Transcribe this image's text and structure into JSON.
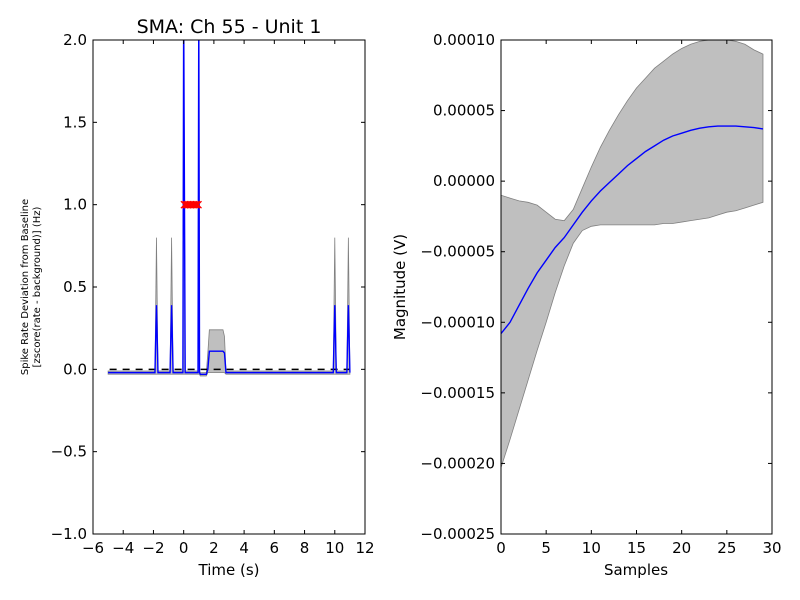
{
  "chart_data": [
    {
      "type": "line",
      "title": "SMA: Ch 55 - Unit 1",
      "xlabel": "Time (s)",
      "ylabel_lines": [
        "Spike Rate Deviation from Baseline",
        "[zscore(rate - background)] (Hz)"
      ],
      "xlim": [
        -6,
        12
      ],
      "ylim": [
        -1.0,
        2.0
      ],
      "xticks": [
        -6,
        -4,
        -2,
        0,
        2,
        4,
        6,
        8,
        10,
        12
      ],
      "xtick_labels": [
        "−6",
        "−4",
        "−2",
        "0",
        "2",
        "4",
        "6",
        "8",
        "10",
        "12"
      ],
      "yticks": [
        -1.0,
        -0.5,
        0.0,
        0.5,
        1.0,
        1.5,
        2.0
      ],
      "ytick_labels": [
        "−1.0",
        "−0.5",
        "0.0",
        "0.5",
        "1.0",
        "1.5",
        "2.0"
      ],
      "colors": {
        "mean": "#0000ff",
        "band": "#bfbfbf",
        "band_edge": "#808080",
        "baseline": "#000000",
        "markers": "#ff0000"
      },
      "baseline": {
        "y": 0.0,
        "x_from": -4.9,
        "x_to": 11.0,
        "style": "dashed"
      },
      "series": [
        {
          "x": [
            -5.0,
            -1.9,
            -1.8,
            -1.7,
            -1.6,
            -0.9,
            -0.8,
            -0.7,
            -0.6,
            -0.05,
            0.0,
            0.1,
            0.95,
            1.0,
            1.05,
            1.1,
            1.5,
            1.6,
            1.7,
            2.6,
            2.7,
            2.8,
            3.0,
            9.9,
            10.0,
            10.1,
            10.2,
            10.8,
            10.9,
            11.0
          ],
          "mean": [
            -0.02,
            -0.02,
            0.39,
            -0.02,
            -0.02,
            -0.02,
            0.39,
            -0.02,
            -0.02,
            -0.02,
            2.2,
            -0.02,
            -0.02,
            2.2,
            -0.02,
            -0.03,
            -0.03,
            0.0,
            0.11,
            0.11,
            0.1,
            -0.02,
            -0.02,
            -0.02,
            0.39,
            -0.02,
            -0.02,
            -0.02,
            0.39,
            -0.02
          ],
          "upper": [
            -0.01,
            -0.01,
            0.8,
            -0.01,
            -0.01,
            -0.01,
            0.8,
            -0.01,
            -0.01,
            -0.01,
            2.2,
            -0.01,
            -0.01,
            2.2,
            -0.01,
            -0.02,
            -0.02,
            0.1,
            0.24,
            0.24,
            0.2,
            -0.01,
            -0.01,
            -0.01,
            0.8,
            -0.01,
            -0.01,
            -0.01,
            0.8,
            -0.01
          ],
          "lower": [
            -0.03,
            -0.03,
            -0.03,
            -0.03,
            -0.03,
            -0.03,
            -0.03,
            -0.03,
            -0.03,
            -0.03,
            -0.03,
            -0.03,
            -0.03,
            -0.03,
            -0.03,
            -0.04,
            -0.04,
            -0.02,
            -0.02,
            -0.02,
            -0.02,
            -0.03,
            -0.03,
            -0.03,
            -0.03,
            -0.03,
            -0.03,
            -0.03,
            -0.03,
            -0.03
          ]
        }
      ],
      "markers": {
        "symbol": "x",
        "y": 1.0,
        "x": [
          0.05,
          0.15,
          0.25,
          0.35,
          0.45,
          0.55,
          0.65,
          0.75,
          0.85,
          0.95
        ]
      }
    },
    {
      "type": "line",
      "xlabel": "Samples",
      "ylabel": "Magnitude (V)",
      "xlim": [
        0,
        30
      ],
      "ylim": [
        -0.00025,
        0.0001
      ],
      "xticks": [
        0,
        5,
        10,
        15,
        20,
        25,
        30
      ],
      "xtick_labels": [
        "0",
        "5",
        "10",
        "15",
        "20",
        "25",
        "30"
      ],
      "yticks": [
        -0.00025,
        -0.0002,
        -0.00015,
        -0.0001,
        -5e-05,
        0.0,
        5e-05,
        0.0001
      ],
      "ytick_labels": [
        "−0.00025",
        "−0.00020",
        "−0.00015",
        "−0.00010",
        "−0.00005",
        "0.00000",
        "0.00005",
        "0.00010"
      ],
      "colors": {
        "mean": "#0000ff",
        "band": "#bfbfbf",
        "band_edge": "#808080"
      },
      "series": [
        {
          "x": [
            0,
            1,
            2,
            3,
            4,
            5,
            6,
            7,
            8,
            9,
            10,
            11,
            12,
            13,
            14,
            15,
            16,
            17,
            18,
            19,
            20,
            21,
            22,
            23,
            24,
            25,
            26,
            27,
            28,
            29
          ],
          "mean": [
            -0.000108,
            -0.0001,
            -8.8e-05,
            -7.6e-05,
            -6.5e-05,
            -5.6e-05,
            -4.7e-05,
            -4e-05,
            -3.1e-05,
            -2.2e-05,
            -1.4e-05,
            -7e-06,
            -1e-06,
            5e-06,
            1.1e-05,
            1.6e-05,
            2.1e-05,
            2.5e-05,
            2.9e-05,
            3.2e-05,
            3.4e-05,
            3.6e-05,
            3.75e-05,
            3.85e-05,
            3.9e-05,
            3.9e-05,
            3.9e-05,
            3.85e-05,
            3.8e-05,
            3.7e-05
          ],
          "upper": [
            -1e-05,
            -1.2e-05,
            -1.4e-05,
            -1.5e-05,
            -1.7e-05,
            -2.2e-05,
            -2.7e-05,
            -2.8e-05,
            -2e-05,
            -5e-06,
            1e-05,
            2.4e-05,
            3.6e-05,
            4.7e-05,
            5.7e-05,
            6.6e-05,
            7.3e-05,
            8e-05,
            8.5e-05,
            9e-05,
            9.4e-05,
            9.7e-05,
            9.9e-05,
            0.0001,
            0.0001,
            0.0001,
            9.9e-05,
            9.7e-05,
            9.3e-05,
            9e-05
          ],
          "lower": [
            -0.000203,
            -0.000183,
            -0.000162,
            -0.000141,
            -0.00012,
            -0.0001,
            -7.9e-05,
            -6e-05,
            -4.4e-05,
            -3.5e-05,
            -3.2e-05,
            -3.1e-05,
            -3.1e-05,
            -3.1e-05,
            -3.1e-05,
            -3.1e-05,
            -3.1e-05,
            -3.1e-05,
            -3e-05,
            -3e-05,
            -2.9e-05,
            -2.8e-05,
            -2.7e-05,
            -2.6e-05,
            -2.4e-05,
            -2.2e-05,
            -2.1e-05,
            -1.9e-05,
            -1.7e-05,
            -1.5e-05
          ]
        }
      ]
    }
  ]
}
